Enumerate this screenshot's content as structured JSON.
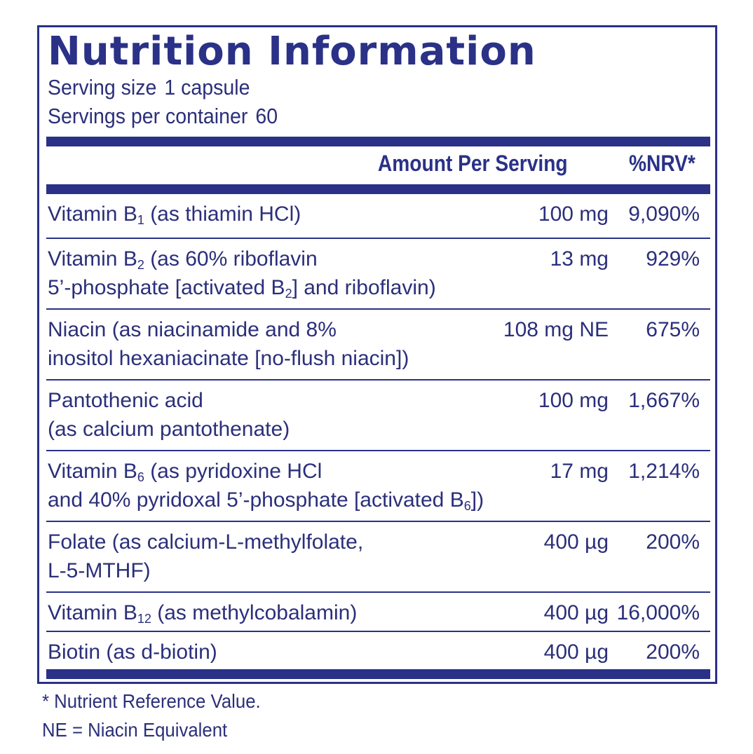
{
  "title": "Nutrition Information",
  "serving": {
    "size_label": "Serving size",
    "size_value": "1 capsule",
    "per_container_label": "Servings per container",
    "per_container_value": "60"
  },
  "header": {
    "amount": "Amount Per Serving",
    "nrv": "%NRV*"
  },
  "rows": [
    {
      "l1_pre": "Vitamin B",
      "l1_sub": "1",
      "l1_post": " (as thiamin HCl)",
      "amount": "100 mg",
      "nrv": "9,090%"
    },
    {
      "l1_pre": "Vitamin B",
      "l1_sub": "2",
      "l1_post": " (as 60% riboflavin",
      "l2_pre": "5’-phosphate [activated B",
      "l2_sub": "2",
      "l2_post": "] and riboflavin)",
      "amount": "13 mg",
      "nrv": "929%"
    },
    {
      "l1_pre": "Niacin (as niacinamide and 8%",
      "l2_pre": "inositol hexaniacinate [no-flush niacin])",
      "amount": "108 mg NE",
      "nrv": "675%"
    },
    {
      "l1_pre": "Pantothenic acid",
      "l2_pre": "(as calcium pantothenate)",
      "amount": "100 mg",
      "nrv": "1,667%"
    },
    {
      "l1_pre": "Vitamin B",
      "l1_sub": "6",
      "l1_post": " (as pyridoxine HCl",
      "l2_pre": "and 40% pyridoxal 5’-phosphate [activated B",
      "l2_sub": "6",
      "l2_post": "])",
      "amount": "17 mg",
      "nrv": "1,214%"
    },
    {
      "l1_pre": "Folate (as calcium-L-methylfolate,",
      "l2_pre": "L-5-MTHF)",
      "amount": "400 µg",
      "nrv": "200%"
    },
    {
      "l1_pre": "Vitamin B",
      "l1_sub": "12",
      "l1_post": " (as methylcobalamin)",
      "amount": "400 µg",
      "nrv": "16,000%"
    },
    {
      "l1_pre": "Biotin (as d-biotin)",
      "amount": "400 µg",
      "nrv": "200%"
    }
  ],
  "footnotes": {
    "nrv_note": "* Nutrient Reference Value.",
    "ne_note": "NE = Niacin Equivalent"
  },
  "colors": {
    "brand_navy": "#2a3187",
    "text": "#2b2f7a",
    "background": "#ffffff"
  }
}
